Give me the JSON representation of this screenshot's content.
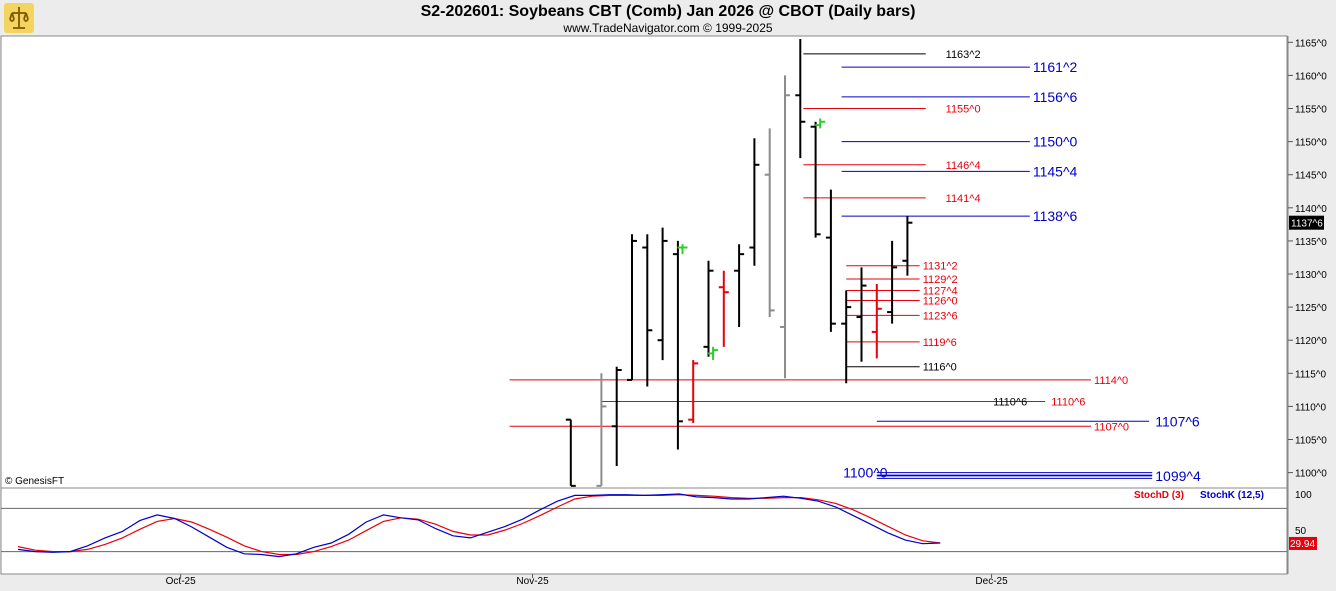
{
  "header": {
    "title": "S2-202601:  Soybeans CBT (Comb) Jan 2026 @ CBOT  (Daily bars)",
    "subtitle": "www.TradeNavigator.com © 1999-2025",
    "logo_icon": "trade-navigator-logo-icon"
  },
  "copyright": "© GenesisFT",
  "colors": {
    "up": "#000000",
    "down": "#e8000b",
    "gray": "#8c8c8c",
    "green": "#2ecc2e",
    "blue": "#0000cc",
    "red": "#e8000b",
    "stoch_d": "#e8000b",
    "stoch_k": "#0000cc"
  },
  "chart_data": {
    "type": "ohlc",
    "price_axis": {
      "ticks": [
        "1165^0",
        "1160^0",
        "1155^0",
        "1150^0",
        "1145^0",
        "1140^0",
        "1135^0",
        "1130^0",
        "1125^0",
        "1120^0",
        "1115^0",
        "1110^0",
        "1105^0",
        "1100^0"
      ],
      "tick_values": [
        1165,
        1160,
        1155,
        1150,
        1145,
        1140,
        1135,
        1130,
        1125,
        1120,
        1115,
        1110,
        1105,
        1100
      ],
      "range": [
        1098,
        1165.5
      ],
      "last_price": "1137^6",
      "last_value": 1137.75
    },
    "date_axis": {
      "labels": [
        "Oct-25",
        "Nov-25",
        "Dec-25"
      ],
      "label_positions_bar": [
        10.5,
        33.5,
        63.5
      ]
    },
    "bars": [
      {
        "i": 36,
        "o": 1108,
        "h": 1108,
        "l": 1098,
        "c": 1098,
        "color": "up"
      },
      {
        "i": 38,
        "o": 1098,
        "h": 1115,
        "l": 1098,
        "c": 1110,
        "color": "gray"
      },
      {
        "i": 39,
        "o": 1107,
        "h": 1116,
        "l": 1101,
        "c": 1115.5,
        "color": "up"
      },
      {
        "i": 40,
        "o": 1114,
        "h": 1136,
        "l": 1114,
        "c": 1135,
        "color": "up"
      },
      {
        "i": 41,
        "o": 1134,
        "h": 1136,
        "l": 1113,
        "c": 1121.5,
        "color": "up"
      },
      {
        "i": 42,
        "o": 1120,
        "h": 1137,
        "l": 1117,
        "c": 1135,
        "color": "up"
      },
      {
        "i": 43,
        "o": 1133,
        "h": 1135,
        "l": 1103.5,
        "c": 1107.75,
        "color": "up"
      },
      {
        "i": 43.3,
        "o": 1134,
        "h": 1134.5,
        "l": 1133,
        "c": 1134,
        "color": "green"
      },
      {
        "i": 44,
        "o": 1108,
        "h": 1117,
        "l": 1107.5,
        "c": 1116.5,
        "color": "down"
      },
      {
        "i": 45,
        "o": 1119,
        "h": 1132,
        "l": 1117.5,
        "c": 1130.5,
        "color": "up"
      },
      {
        "i": 45.3,
        "o": 1118,
        "h": 1119,
        "l": 1117,
        "c": 1118.5,
        "color": "green"
      },
      {
        "i": 46,
        "o": 1128,
        "h": 1130.5,
        "l": 1119,
        "c": 1127.25,
        "color": "down"
      },
      {
        "i": 47,
        "o": 1130.5,
        "h": 1134.5,
        "l": 1122,
        "c": 1133,
        "color": "up"
      },
      {
        "i": 48,
        "o": 1134,
        "h": 1150.5,
        "l": 1131.25,
        "c": 1146.5,
        "color": "up"
      },
      {
        "i": 49,
        "o": 1145,
        "h": 1152,
        "l": 1123.5,
        "c": 1124.5,
        "color": "gray"
      },
      {
        "i": 50,
        "o": 1122,
        "h": 1160,
        "l": 1114.25,
        "c": 1157,
        "color": "gray"
      },
      {
        "i": 51,
        "o": 1157,
        "h": 1165.5,
        "l": 1147.5,
        "c": 1153,
        "color": "up"
      },
      {
        "i": 52,
        "o": 1152.25,
        "h": 1153,
        "l": 1135.5,
        "c": 1136,
        "color": "up"
      },
      {
        "i": 52.3,
        "o": 1152.5,
        "h": 1153.5,
        "l": 1152,
        "c": 1153,
        "color": "green"
      },
      {
        "i": 53,
        "o": 1135.5,
        "h": 1142.75,
        "l": 1121.25,
        "c": 1122.5,
        "color": "up"
      },
      {
        "i": 54,
        "o": 1122.5,
        "h": 1127.5,
        "l": 1113.5,
        "c": 1125,
        "color": "up"
      },
      {
        "i": 55,
        "o": 1123.5,
        "h": 1131,
        "l": 1116.75,
        "c": 1128.25,
        "color": "up"
      },
      {
        "i": 56,
        "o": 1121.25,
        "h": 1128.5,
        "l": 1117.25,
        "c": 1124.75,
        "color": "down"
      },
      {
        "i": 57,
        "o": 1124.25,
        "h": 1135,
        "l": 1122.5,
        "c": 1131,
        "color": "up"
      },
      {
        "i": 58,
        "o": 1132,
        "h": 1138.75,
        "l": 1129.75,
        "c": 1137.75,
        "color": "up"
      }
    ],
    "levels": [
      {
        "label": "1163^2",
        "value": 1163.25,
        "color": "black",
        "x0_bar": 51.2,
        "x1_bar": 59.2,
        "label_bar": 60.5
      },
      {
        "label": "1161^2",
        "value": 1161.25,
        "color": "blue",
        "x0_bar": 53.7,
        "x1_bar": 66,
        "label_bar": 66.2,
        "big": true
      },
      {
        "label": "1156^6",
        "value": 1156.75,
        "color": "blue",
        "x0_bar": 53.7,
        "x1_bar": 66,
        "label_bar": 66.2,
        "big": true
      },
      {
        "label": "1155^0",
        "value": 1155,
        "color": "red",
        "x0_bar": 51.2,
        "x1_bar": 59.2,
        "label_bar": 60.5
      },
      {
        "label": "1150^0",
        "value": 1150,
        "color": "blue",
        "x0_bar": 53.7,
        "x1_bar": 66,
        "label_bar": 66.2,
        "big": true
      },
      {
        "label": "1146^4",
        "value": 1146.5,
        "color": "red",
        "x0_bar": 51.2,
        "x1_bar": 59.2,
        "label_bar": 60.5
      },
      {
        "label": "1145^4",
        "value": 1145.5,
        "color": "blue",
        "x0_bar": 53.7,
        "x1_bar": 66,
        "label_bar": 66.2,
        "big": true
      },
      {
        "label": "1141^4",
        "value": 1141.5,
        "color": "red",
        "x0_bar": 51.2,
        "x1_bar": 59.2,
        "label_bar": 60.5
      },
      {
        "label": "1138^6",
        "value": 1138.75,
        "color": "blue",
        "x0_bar": 53.7,
        "x1_bar": 66,
        "label_bar": 66.2,
        "big": true
      },
      {
        "label": "1131^2",
        "value": 1131.25,
        "color": "red",
        "x0_bar": 54,
        "x1_bar": 58.8,
        "label_bar": 59
      },
      {
        "label": "1129^2",
        "value": 1129.25,
        "color": "red",
        "x0_bar": 54,
        "x1_bar": 58.8,
        "label_bar": 59
      },
      {
        "label": "1127^4",
        "value": 1127.5,
        "color": "red",
        "x0_bar": 54,
        "x1_bar": 58.8,
        "label_bar": 59
      },
      {
        "label": "1126^0",
        "value": 1126,
        "color": "red",
        "x0_bar": 54,
        "x1_bar": 58.8,
        "label_bar": 59
      },
      {
        "label": "1123^6",
        "value": 1123.75,
        "color": "red",
        "x0_bar": 54,
        "x1_bar": 58.8,
        "label_bar": 59
      },
      {
        "label": "1119^6",
        "value": 1119.75,
        "color": "red",
        "x0_bar": 54,
        "x1_bar": 58.8,
        "label_bar": 59
      },
      {
        "label": "1116^0",
        "value": 1116,
        "color": "black",
        "x0_bar": 54,
        "x1_bar": 58.8,
        "label_bar": 59
      },
      {
        "label": "1114^0",
        "value": 1114,
        "color": "red",
        "x0_bar": 32,
        "x1_bar": 70,
        "label_bar": 70.2
      },
      {
        "label": "1110^6",
        "value": 1110.75,
        "color": "red",
        "x0_bar": 38,
        "x1_bar": 67,
        "label_bar": 67.4
      },
      {
        "label": "1110^6",
        "value": 1110.75,
        "color": "black",
        "x0_bar": 64,
        "x1_bar": 64,
        "label_bar": 63.6
      },
      {
        "label": "1107^6",
        "value": 1107.75,
        "color": "blue",
        "x0_bar": 56,
        "x1_bar": 73.8,
        "label_bar": 74.2,
        "big": true
      },
      {
        "label": "1107^0",
        "value": 1107,
        "color": "red",
        "x0_bar": 32,
        "x1_bar": 70,
        "label_bar": 70.2
      },
      {
        "label": "1100^0",
        "value": 1100,
        "color": "blue",
        "x0_bar": 56,
        "x1_bar": 74,
        "label_bar": 53.8,
        "big": true,
        "double": true
      },
      {
        "label": "1099^4",
        "value": 1099.5,
        "color": "blue",
        "x0_bar": 56,
        "x1_bar": 74,
        "label_bar": 74.2,
        "big": true,
        "double": true
      }
    ],
    "stochastic": {
      "legend": [
        "StochD (3)",
        "StochK (12,5)"
      ],
      "axis_ticks": [
        "100",
        "50"
      ],
      "axis_tick_values": [
        100,
        50
      ],
      "last_value": "29.94",
      "overbought": 80,
      "oversold": 20,
      "k": [
        [
          0,
          23
        ],
        [
          1,
          20
        ],
        [
          2,
          19
        ],
        [
          3,
          20
        ],
        [
          4,
          28
        ],
        [
          5,
          39
        ],
        [
          6,
          48
        ],
        [
          7,
          63
        ],
        [
          8,
          71
        ],
        [
          9,
          66
        ],
        [
          10,
          54
        ],
        [
          11,
          40
        ],
        [
          12,
          26
        ],
        [
          13,
          17
        ],
        [
          14,
          16
        ],
        [
          15,
          13
        ],
        [
          16,
          17
        ],
        [
          17,
          26
        ],
        [
          18,
          32
        ],
        [
          19,
          44
        ],
        [
          20,
          61
        ],
        [
          21,
          71
        ],
        [
          22,
          67
        ],
        [
          23,
          64
        ],
        [
          24,
          52
        ],
        [
          25,
          42
        ],
        [
          26,
          39
        ],
        [
          27,
          47
        ],
        [
          28,
          55
        ],
        [
          29,
          65
        ],
        [
          30,
          78
        ],
        [
          31,
          90
        ],
        [
          32,
          98
        ],
        [
          33,
          98
        ],
        [
          34,
          99
        ],
        [
          35,
          99
        ],
        [
          36,
          98
        ],
        [
          37,
          99
        ],
        [
          38,
          100
        ],
        [
          39,
          96
        ],
        [
          40,
          95
        ],
        [
          41,
          93
        ],
        [
          42,
          93
        ],
        [
          43,
          95
        ],
        [
          44,
          97
        ],
        [
          45,
          94
        ],
        [
          46,
          90
        ],
        [
          47,
          82
        ],
        [
          48,
          70
        ],
        [
          49,
          58
        ],
        [
          50,
          46
        ],
        [
          51,
          36
        ],
        [
          52,
          31
        ],
        [
          53,
          32
        ]
      ],
      "d": [
        [
          0,
          27
        ],
        [
          1,
          22
        ],
        [
          2,
          20
        ],
        [
          3,
          20
        ],
        [
          4,
          23
        ],
        [
          5,
          30
        ],
        [
          6,
          39
        ],
        [
          7,
          51
        ],
        [
          8,
          62
        ],
        [
          9,
          66
        ],
        [
          10,
          61
        ],
        [
          11,
          51
        ],
        [
          12,
          40
        ],
        [
          13,
          28
        ],
        [
          14,
          20
        ],
        [
          15,
          16
        ],
        [
          16,
          16
        ],
        [
          17,
          20
        ],
        [
          18,
          27
        ],
        [
          19,
          36
        ],
        [
          20,
          49
        ],
        [
          21,
          62
        ],
        [
          22,
          67
        ],
        [
          23,
          65
        ],
        [
          24,
          58
        ],
        [
          25,
          48
        ],
        [
          26,
          43
        ],
        [
          27,
          43
        ],
        [
          28,
          50
        ],
        [
          29,
          59
        ],
        [
          30,
          70
        ],
        [
          31,
          82
        ],
        [
          32,
          93
        ],
        [
          33,
          97
        ],
        [
          34,
          98
        ],
        [
          35,
          98
        ],
        [
          36,
          98
        ],
        [
          37,
          98
        ],
        [
          38,
          99
        ],
        [
          39,
          98
        ],
        [
          40,
          97
        ],
        [
          41,
          95
        ],
        [
          42,
          94
        ],
        [
          43,
          94
        ],
        [
          44,
          95
        ],
        [
          45,
          95
        ],
        [
          46,
          92
        ],
        [
          47,
          87
        ],
        [
          48,
          78
        ],
        [
          49,
          67
        ],
        [
          50,
          55
        ],
        [
          51,
          43
        ],
        [
          52,
          35
        ],
        [
          53,
          32
        ]
      ]
    }
  }
}
